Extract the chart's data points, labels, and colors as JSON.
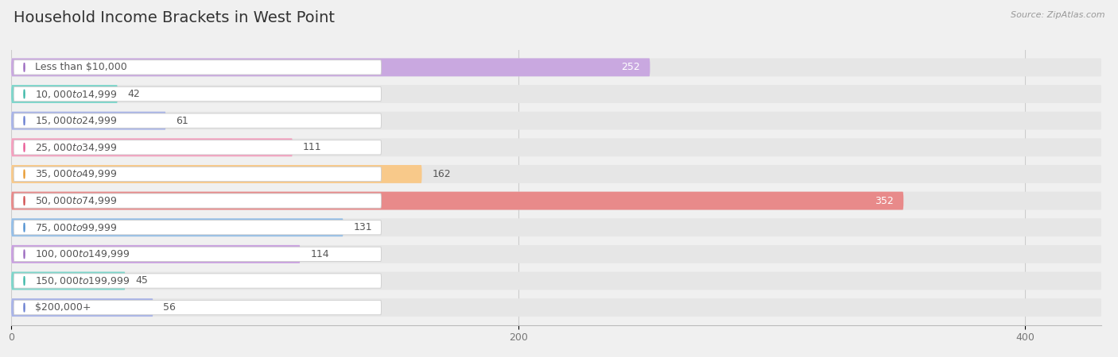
{
  "title": "Household Income Brackets in West Point",
  "source": "Source: ZipAtlas.com",
  "categories": [
    "Less than $10,000",
    "$10,000 to $14,999",
    "$15,000 to $24,999",
    "$25,000 to $34,999",
    "$35,000 to $49,999",
    "$50,000 to $74,999",
    "$75,000 to $99,999",
    "$100,000 to $149,999",
    "$150,000 to $199,999",
    "$200,000+"
  ],
  "values": [
    252,
    42,
    61,
    111,
    162,
    352,
    131,
    114,
    45,
    56
  ],
  "bar_colors": [
    "#c9a8e0",
    "#7dd6cb",
    "#a9b4e8",
    "#f5a0bf",
    "#f8c98a",
    "#e88a8a",
    "#95bfe8",
    "#c9a0e0",
    "#7dd6cb",
    "#a9b4e8"
  ],
  "circle_colors": [
    "#9b6abf",
    "#3db8a8",
    "#6a7fd0",
    "#e85a95",
    "#e89a30",
    "#d05050",
    "#5090d0",
    "#9b6abf",
    "#3db8a8",
    "#6a7fd0"
  ],
  "xlim": [
    0,
    430
  ],
  "xticks": [
    0,
    200,
    400
  ],
  "bg_color": "#f0f0f0",
  "row_bg_color": "#e4e4e4",
  "label_box_color": "#ffffff",
  "title_fontsize": 14,
  "value_fontsize": 9,
  "label_fontsize": 9
}
